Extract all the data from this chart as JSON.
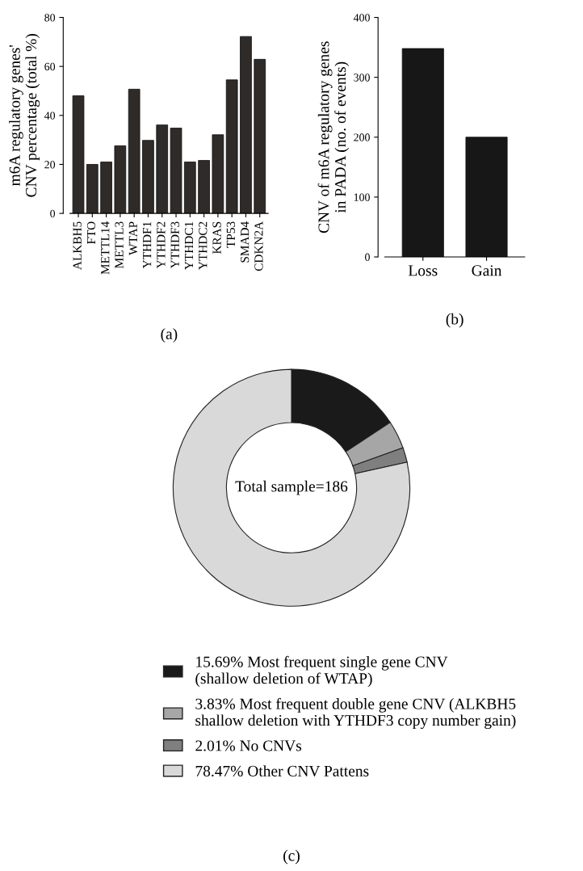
{
  "chart_data": [
    {
      "type": "bar",
      "ylabel": "m6A regulatory genes'\nCNV percentage (total %)",
      "categories": [
        "ALKBH5",
        "FTO",
        "METTL14",
        "METTL3",
        "WTAP",
        "YTHDF1",
        "YTHDF2",
        "YTHDF3",
        "YTHDC1",
        "YTHDC2",
        "KRAS",
        "TP53",
        "SMAD4",
        "CDKN2A"
      ],
      "values": [
        48,
        20,
        21,
        27.6,
        50.7,
        29.8,
        36.1,
        34.8,
        21,
        21.6,
        32.1,
        54.5,
        72.2,
        62.9
      ],
      "color": "#2e2b29",
      "ylim": [
        0,
        80
      ],
      "yticks": [
        0,
        20,
        40,
        60,
        80
      ],
      "grid": false,
      "annotations": [
        "(a)"
      ]
    },
    {
      "type": "bar",
      "ylabel": "CNV of m6A regulatory genes\nin PADA (no. of events)",
      "categories": [
        "Loss",
        "Gain"
      ],
      "values": [
        348,
        200
      ],
      "color": "#171717",
      "ylim": [
        0,
        400
      ],
      "yticks": [
        0,
        100,
        200,
        300,
        400
      ],
      "grid": false,
      "annotations": [
        "(b)"
      ]
    },
    {
      "type": "donut",
      "categories": [
        "15.69% Most frequent single gene CNV\n(shallow deletion of WTAP)",
        "3.83% Most frequent double gene CNV (ALKBH5\nshallow deletion with YTHDF3 copy number gain)",
        "2.01% No CNVs",
        "78.47% Other CNV Pattens"
      ],
      "values": [
        15.69,
        3.83,
        2.01,
        78.47
      ],
      "colors": [
        "#1a1a1a",
        "#a6a6a6",
        "#7f7f7f",
        "#d9d9d9"
      ],
      "legend": "bottom",
      "annotations": [
        "Total sample=186",
        "(c)"
      ]
    }
  ]
}
